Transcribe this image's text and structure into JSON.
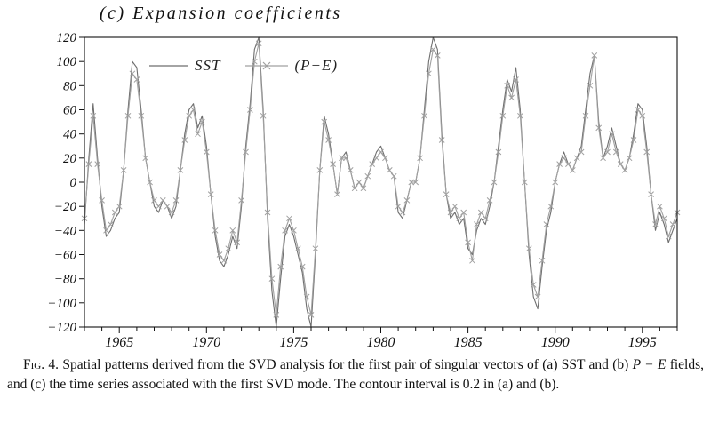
{
  "figure": {
    "title": "(c) Expansion coefficients",
    "legend": {
      "sst": "SST",
      "pe": "(P−E)"
    },
    "caption": {
      "label": "Fig. 4.",
      "part1": " Spatial patterns derived from the SVD analysis for the first pair of singular vectors of (a) SST and (b) ",
      "pe_italic": "P − E",
      "part2": " fields, and (c) the time series associated with the first SVD mode. The contour interval is 0.2 in (a) and (b)."
    }
  },
  "chart_data": {
    "type": "line",
    "title": "(c) Expansion coefficients",
    "xlabel": "",
    "ylabel": "",
    "xlim": [
      1963,
      1997
    ],
    "ylim": [
      -120,
      120
    ],
    "y_tick_interval": 20,
    "x_tick_labels": [
      1965,
      1970,
      1975,
      1980,
      1985,
      1990,
      1995
    ],
    "x_start": 1963,
    "x_step": 0.25,
    "grid": false,
    "legend_position": "top-left-inside",
    "series": [
      {
        "name": "SST",
        "style": "solid",
        "color": "#6e6e6e",
        "values": [
          -35,
          20,
          65,
          20,
          -20,
          -45,
          -40,
          -30,
          -25,
          10,
          60,
          100,
          95,
          60,
          20,
          0,
          -20,
          -25,
          -15,
          -20,
          -30,
          -20,
          10,
          40,
          60,
          65,
          45,
          55,
          30,
          -10,
          -45,
          -65,
          -70,
          -60,
          -45,
          -55,
          -20,
          30,
          65,
          110,
          125,
          60,
          -30,
          -90,
          -120,
          -80,
          -45,
          -35,
          -45,
          -60,
          -75,
          -105,
          -120,
          -60,
          10,
          55,
          40,
          15,
          -10,
          20,
          25,
          10,
          -5,
          0,
          -5,
          5,
          15,
          25,
          30,
          20,
          10,
          5,
          -25,
          -30,
          -15,
          0,
          0,
          20,
          60,
          100,
          125,
          110,
          40,
          -10,
          -30,
          -25,
          -35,
          -30,
          -55,
          -60,
          -40,
          -30,
          -35,
          -20,
          0,
          30,
          60,
          85,
          75,
          95,
          60,
          0,
          -60,
          -95,
          -105,
          -70,
          -40,
          -25,
          0,
          15,
          25,
          15,
          10,
          20,
          30,
          60,
          90,
          105,
          50,
          20,
          30,
          45,
          30,
          15,
          10,
          20,
          40,
          65,
          60,
          30,
          -10,
          -40,
          -25,
          -35,
          -50,
          -40,
          -30
        ]
      },
      {
        "name": "(P−E)",
        "style": "solid-x",
        "color": "#a0a0a0",
        "values": [
          -30,
          15,
          55,
          15,
          -15,
          -40,
          -35,
          -25,
          -20,
          10,
          55,
          90,
          85,
          55,
          20,
          0,
          -15,
          -20,
          -15,
          -20,
          -25,
          -15,
          10,
          35,
          55,
          60,
          40,
          50,
          25,
          -10,
          -40,
          -60,
          -65,
          -55,
          -40,
          -50,
          -15,
          25,
          60,
          100,
          115,
          55,
          -25,
          -80,
          -110,
          -70,
          -40,
          -30,
          -40,
          -55,
          -70,
          -95,
          -110,
          -55,
          10,
          50,
          35,
          15,
          -10,
          20,
          20,
          10,
          -5,
          0,
          -5,
          5,
          15,
          20,
          25,
          20,
          10,
          5,
          -20,
          -25,
          -15,
          0,
          0,
          20,
          55,
          90,
          110,
          105,
          35,
          -10,
          -25,
          -20,
          -30,
          -25,
          -50,
          -65,
          -35,
          -25,
          -30,
          -15,
          0,
          25,
          55,
          80,
          70,
          85,
          55,
          0,
          -55,
          -85,
          -95,
          -65,
          -35,
          -20,
          0,
          15,
          20,
          15,
          10,
          20,
          25,
          55,
          80,
          105,
          45,
          20,
          25,
          40,
          25,
          15,
          10,
          20,
          35,
          60,
          55,
          25,
          -10,
          -35,
          -20,
          -30,
          -45,
          -35,
          -25
        ]
      }
    ]
  }
}
